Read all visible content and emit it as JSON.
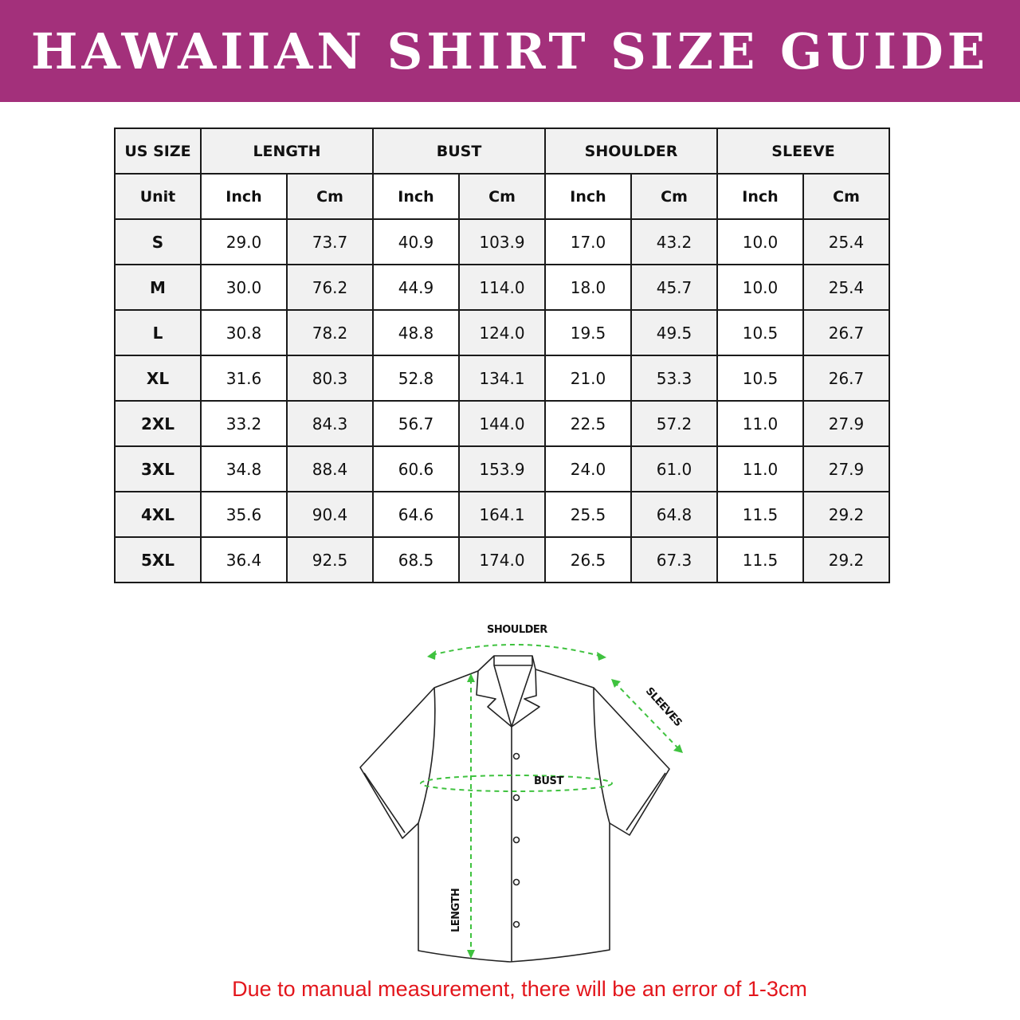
{
  "title": "HAWAIIAN SHIRT SIZE GUIDE",
  "colors": {
    "banner": "#a3307b",
    "note": "#e3161c",
    "measure_lines": "#3fc23f"
  },
  "table": {
    "headers": [
      "US SIZE",
      "LENGTH",
      "BUST",
      "SHOULDER",
      "SLEEVE"
    ],
    "unit_label": "Unit",
    "units": [
      "Inch",
      "Cm",
      "Inch",
      "Cm",
      "Inch",
      "Cm",
      "Inch",
      "Cm"
    ],
    "rows": [
      {
        "size": "S",
        "values": [
          "29.0",
          "73.7",
          "40.9",
          "103.9",
          "17.0",
          "43.2",
          "10.0",
          "25.4"
        ]
      },
      {
        "size": "M",
        "values": [
          "30.0",
          "76.2",
          "44.9",
          "114.0",
          "18.0",
          "45.7",
          "10.0",
          "25.4"
        ]
      },
      {
        "size": "L",
        "values": [
          "30.8",
          "78.2",
          "48.8",
          "124.0",
          "19.5",
          "49.5",
          "10.5",
          "26.7"
        ]
      },
      {
        "size": "XL",
        "values": [
          "31.6",
          "80.3",
          "52.8",
          "134.1",
          "21.0",
          "53.3",
          "10.5",
          "26.7"
        ]
      },
      {
        "size": "2XL",
        "values": [
          "33.2",
          "84.3",
          "56.7",
          "144.0",
          "22.5",
          "57.2",
          "11.0",
          "27.9"
        ]
      },
      {
        "size": "3XL",
        "values": [
          "34.8",
          "88.4",
          "60.6",
          "153.9",
          "24.0",
          "61.0",
          "11.0",
          "27.9"
        ]
      },
      {
        "size": "4XL",
        "values": [
          "35.6",
          "90.4",
          "64.6",
          "164.1",
          "25.5",
          "64.8",
          "11.5",
          "29.2"
        ]
      },
      {
        "size": "5XL",
        "values": [
          "36.4",
          "92.5",
          "68.5",
          "174.0",
          "26.5",
          "67.3",
          "11.5",
          "29.2"
        ]
      }
    ]
  },
  "diagram": {
    "shoulder": "SHOULDER",
    "sleeves": "SLEEVES",
    "bust": "BUST",
    "length": "LENGTH"
  },
  "note": "Due to manual measurement, there will be an error of 1-3cm"
}
